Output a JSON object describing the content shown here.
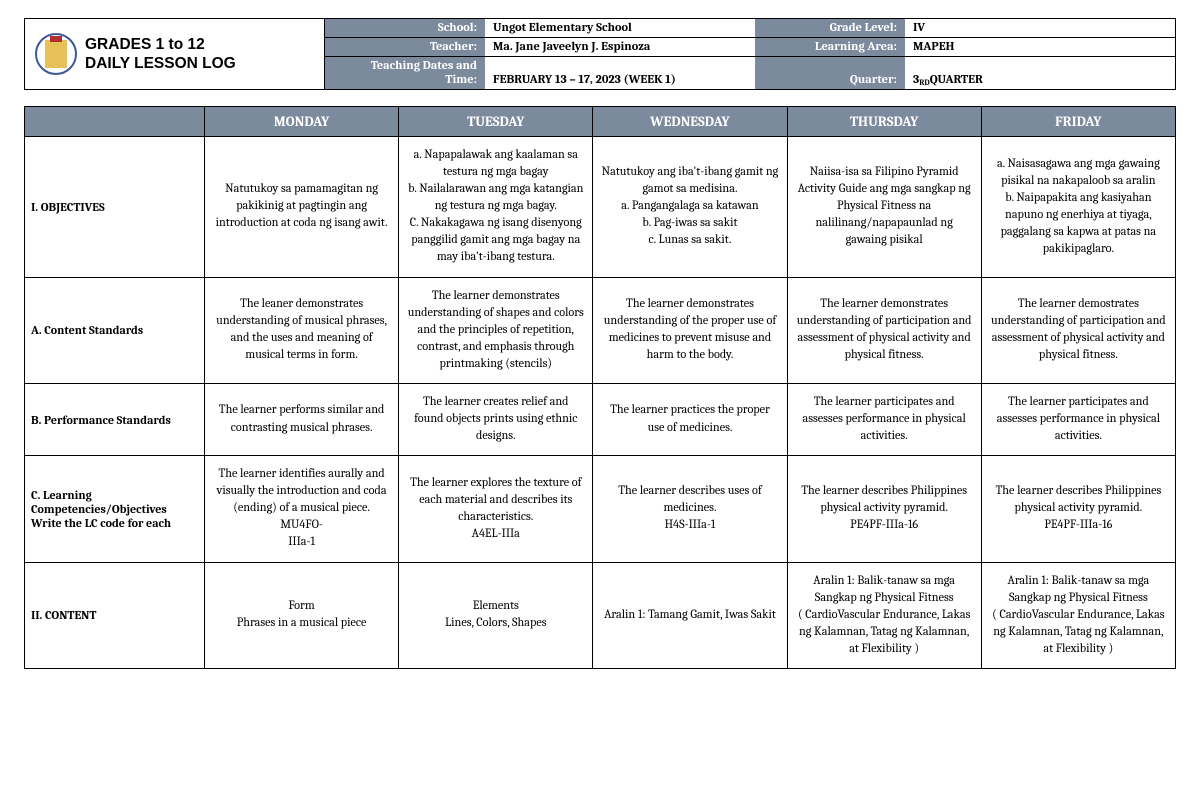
{
  "title_line1": "GRADES 1 to 12",
  "title_line2": "DAILY LESSON LOG",
  "header_labels": {
    "school": "School:",
    "teacher": "Teacher:",
    "dates": "Teaching Dates and\nTime:",
    "grade": "Grade Level:",
    "area": "Learning Area:",
    "quarter": "Quarter:"
  },
  "header_values": {
    "school": "Ungot Elementary School",
    "teacher": "Ma. Jane Javeelyn J. Espinoza",
    "dates": "FEBRUARY 13 – 17, 2023 (WEEK 1)",
    "grade": "IV",
    "area": "MAPEH",
    "quarter_main": "3",
    "quarter_sup": "RD",
    "quarter_tail": " QUARTER"
  },
  "days": [
    "MONDAY",
    "TUESDAY",
    "WEDNESDAY",
    "THURSDAY",
    "FRIDAY"
  ],
  "rows": [
    {
      "heading": "I. OBJECTIVES",
      "headClass": "top",
      "cells": [
        "Natutukoy sa pamamagitan ng pakikinig at pagtingin ang introduction at coda ng isang awit.",
        "a. Napapalawak ang kaalaman sa testura ng mga bagay\nb. Nailalarawan ang mga katangian ng testura ng mga bagay.\nC. Nakakagawa ng isang disenyong panggilid gamit ang mga bagay na may iba't-ibang testura.",
        "Natutukoy ang iba't-ibang gamit ng gamot sa medisina.\na. Pangangalaga sa katawan\nb. Pag-iwas sa sakit\nc. Lunas sa sakit.",
        "Naiisa-isa sa Filipino Pyramid Activity Guide ang mga sangkap ng Physical Fitness na nalilinang/napapaunlad ng gawaing pisikal",
        "a. Naisasagawa ang mga gawaing pisikal na nakapaloob sa aralin\nb. Naipapakita ang kasiyahan napuno ng enerhiya at tiyaga, paggalang sa kapwa at patas na pakikipaglaro."
      ]
    },
    {
      "heading": "A. Content Standards",
      "headClass": "",
      "cells": [
        "The leaner demonstrates understanding of musical phrases, and the uses and meaning of musical terms in form.",
        "The learner demonstrates understanding of shapes and colors and the principles of repetition, contrast, and emphasis through printmaking (stencils)",
        "The learner demonstrates understanding of the proper use of medicines to prevent misuse and harm to the body.",
        "The learner demonstrates understanding of participation and assessment of physical activity and physical fitness.",
        "The learner demostrates understanding of participation and assessment of physical activity and physical fitness."
      ]
    },
    {
      "heading": "B. Performance Standards",
      "headClass": "",
      "cells": [
        "The learner performs similar and contrasting musical phrases.",
        "The learner creates relief and found objects prints using ethnic designs.",
        "The learner practices the proper use of medicines.",
        "The learner participates and assesses performance in physical activities.",
        "The learner participates and assesses performance in physical activities."
      ]
    },
    {
      "heading": "   C. Learning\nCompetencies/Objectives\n     Write the LC code for each",
      "headClass": "",
      "cells": [
        "The learner identifies aurally and visually the introduction and coda (ending) of a musical piece.                      MU4FO-\nIIIa-1",
        "The learner explores the texture of each material and describes its characteristics.\nA4EL-IIIa",
        "The learner describes uses of medicines.\nH4S-IIIa-1",
        "The learner describes Philippines physical activity pyramid.\nPE4PF-IIIa-16",
        "The learner describes Philippines physical activity pyramid.\nPE4PF-IIIa-16"
      ]
    },
    {
      "heading": "II. CONTENT",
      "headClass": "",
      "cells": [
        "Form\nPhrases in a musical piece",
        "Elements\nLines, Colors, Shapes",
        "Aralin 1: Tamang Gamit, Iwas Sakit",
        "Aralin 1: Balik-tanaw sa mga Sangkap ng Physical Fitness\n( CardioVascular Endurance, Lakas ng Kalamnan, Tatag ng Kalamnan, at Flexibility )",
        "Aralin 1: Balik-tanaw sa mga Sangkap ng Physical Fitness\n( CardioVascular Endurance, Lakas ng Kalamnan, Tatag ng Kalamnan, at Flexibility )"
      ]
    }
  ],
  "colors": {
    "header_bg": "#7b8a9c",
    "border": "#000000"
  }
}
